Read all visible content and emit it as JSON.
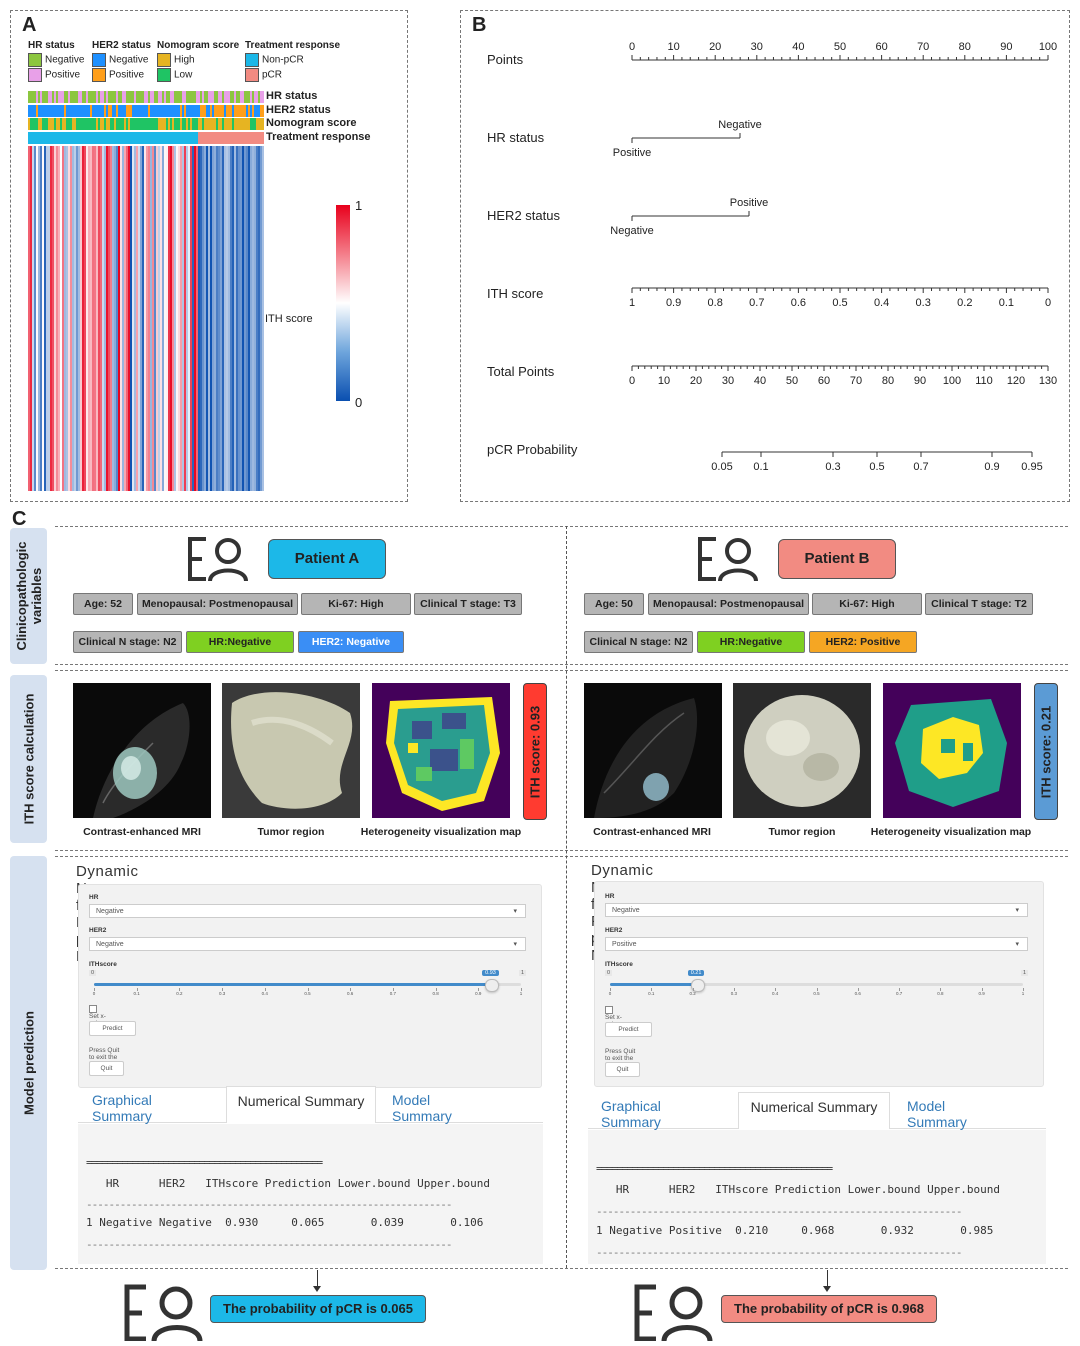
{
  "panels": {
    "a": "A",
    "b": "B",
    "c": "C"
  },
  "heatmap": {
    "legend": [
      {
        "title": "HR status",
        "items": [
          {
            "label": "Negative",
            "color": "#8cc63f"
          },
          {
            "label": "Positive",
            "color": "#e8a0e8"
          }
        ]
      },
      {
        "title": "HER2 status",
        "items": [
          {
            "label": "Negative",
            "color": "#1e90ff"
          },
          {
            "label": "Positive",
            "color": "#ff9f1a"
          }
        ]
      },
      {
        "title": "Nomogram score",
        "items": [
          {
            "label": "High",
            "color": "#e6b422"
          },
          {
            "label": "Low",
            "color": "#1fc464"
          }
        ]
      },
      {
        "title": "Treatment response",
        "items": [
          {
            "label": "Non-pCR",
            "color": "#1cb8e8"
          },
          {
            "label": "pCR",
            "color": "#f28b82"
          }
        ]
      }
    ],
    "tracks": [
      "HR status",
      "HER2 status",
      "Nomogram score",
      "Treatment response"
    ],
    "colorbar": {
      "max": "1",
      "min": "0",
      "label": "ITH score"
    }
  },
  "nomogram": {
    "rows": [
      {
        "name": "Points",
        "type": "scale",
        "ticks": [
          "0",
          "10",
          "20",
          "30",
          "40",
          "50",
          "60",
          "70",
          "80",
          "90",
          "100"
        ]
      },
      {
        "name": "HR status",
        "type": "cat",
        "left": "Positive",
        "right": "Negative"
      },
      {
        "name": "HER2 status",
        "type": "cat",
        "left": "Negative",
        "right": "Positive"
      },
      {
        "name": "ITH score",
        "type": "scale",
        "ticks": [
          "1",
          "0.9",
          "0.8",
          "0.7",
          "0.6",
          "0.5",
          "0.4",
          "0.3",
          "0.2",
          "0.1",
          "0"
        ]
      },
      {
        "name": "Total Points",
        "type": "scale",
        "ticks": [
          "0",
          "10",
          "20",
          "30",
          "40",
          "50",
          "60",
          "70",
          "80",
          "90",
          "100",
          "110",
          "120",
          "130"
        ]
      },
      {
        "name": "pCR Probability",
        "type": "prob",
        "ticks": [
          "0.05",
          "0.1",
          "0.3",
          "0.5",
          "0.7",
          "0.9",
          "0.95"
        ]
      }
    ]
  },
  "sidebars": [
    "Clinicopathologic variables",
    "ITH score calculation",
    "Model prediction"
  ],
  "patients": [
    {
      "name": "Patient A",
      "color": "#1cb8e8",
      "tags_row1": [
        "Age: 52",
        "Menopausal: Postmenopausal",
        "Ki-67: High",
        "Clinical T stage: T3"
      ],
      "tags_row2": [
        {
          "text": "Clinical N stage: N2",
          "style": "gray"
        },
        {
          "text": "HR:Negative",
          "style": "green"
        },
        {
          "text": "HER2:  Negative",
          "style": "blue"
        }
      ],
      "captions": [
        "Contrast-enhanced MRI",
        "Tumor region",
        "Heterogeneity visualization map"
      ],
      "ith_label": "ITH score: 0.93",
      "ith_color": "#ff3b30",
      "app": {
        "title": "Dynamic Nomogram for Predicting pCR to NAC",
        "hr_label": "HR",
        "hr_value": "Negative",
        "her2_label": "HER2",
        "her2_value": "Negative",
        "ith_label": "ITHscore",
        "slider_value": "0.93",
        "slider_min": "0",
        "slider_max": "1",
        "slider_ticks": [
          "0",
          "0.1",
          "0.2",
          "0.3",
          "0.4",
          "0.5",
          "0.6",
          "0.7",
          "0.8",
          "0.9",
          "1"
        ],
        "checkbox": "Set x-axis ranges",
        "predict": "Predict",
        "quit_note": "Press Quit to exit the application",
        "quit": "Quit",
        "tabs": [
          "Graphical Summary",
          "Numerical Summary",
          "Model Summary"
        ],
        "table_rule": "==============================================",
        "table_header": "   HR      HER2   ITHscore Prediction Lower.bound Upper.bound",
        "table_dash": "-----------------------------------------------------------------",
        "table_row": "1 Negative Negative  0.930     0.065       0.039       0.106"
      },
      "result": "The probability of pCR is 0.065"
    },
    {
      "name": "Patient B",
      "color": "#f28b82",
      "tags_row1": [
        "Age: 50",
        "Menopausal: Postmenopausal",
        "Ki-67: High",
        "Clinical T stage: T2"
      ],
      "tags_row2": [
        {
          "text": "Clinical N stage: N2",
          "style": "gray"
        },
        {
          "text": "HR:Negative",
          "style": "green"
        },
        {
          "text": "HER2: Positive",
          "style": "orange"
        }
      ],
      "captions": [
        "Contrast-enhanced MRI",
        "Tumor region",
        "Heterogeneity visualization map"
      ],
      "ith_label": "ITH score: 0.21",
      "ith_color": "#5b9bd5",
      "app": {
        "title": "Dynamic Nomogram for Predicting pCR to NAC",
        "hr_label": "HR",
        "hr_value": "Negative",
        "her2_label": "HER2",
        "her2_value": "Positive",
        "ith_label": "ITHscore",
        "slider_value": "0.21",
        "slider_min": "0",
        "slider_max": "1",
        "slider_ticks": [
          "0",
          "0.1",
          "0.2",
          "0.3",
          "0.4",
          "0.5",
          "0.6",
          "0.7",
          "0.8",
          "0.9",
          "1"
        ],
        "checkbox": "Set x-axis ranges",
        "predict": "Predict",
        "quit_note": "Press Quit to exit the application",
        "quit": "Quit",
        "tabs": [
          "Graphical Summary",
          "Numerical Summary",
          "Model Summary"
        ],
        "table_rule": "==============================================",
        "table_header": "   HR      HER2   ITHscore Prediction Lower.bound Upper.bound",
        "table_dash": "-----------------------------------------------------------------",
        "table_row": "1 Negative Positive  0.210     0.968       0.932       0.985"
      },
      "result": "The probability of pCR is 0.968"
    }
  ]
}
